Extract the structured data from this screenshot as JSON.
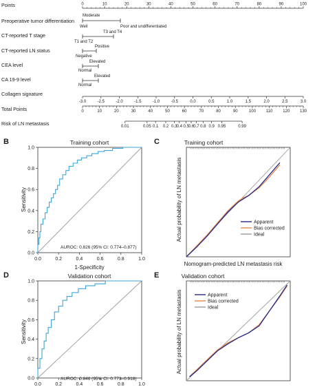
{
  "nomogram": {
    "rows": [
      {
        "label": "Points"
      },
      {
        "label": "Preoperative tumor differentiation",
        "level_labels": [
          "Moderate",
          "Well",
          "Poor and undifferentiated"
        ]
      },
      {
        "label": "CT-reported T stage",
        "level_labels": [
          "T3 and T4",
          "T1 and T2"
        ]
      },
      {
        "label": "CT-reported LN status",
        "level_labels": [
          "Positive",
          "Negative"
        ]
      },
      {
        "label": "CEA level",
        "level_labels": [
          "Elevated",
          "Normal"
        ]
      },
      {
        "label": "CA 19-9 level",
        "level_labels": [
          "Elevated",
          "Normal"
        ]
      },
      {
        "label": "Collagen signature"
      },
      {
        "label": "Total Points"
      },
      {
        "label": "Risk of LN metastasis"
      }
    ]
  },
  "panels": {
    "B": {
      "letter": "B",
      "title": "Training cohort",
      "xlabel": "1-Specificity",
      "ylabel": "Sensitivity",
      "annotation": "AUROC: 0.826 (95% CI: 0.774–0.877)"
    },
    "C": {
      "letter": "C",
      "title": "Training cohort",
      "xlabel": "Nomogram-predicted LN metastasis risk",
      "ylabel": "Actual probability of LN metastasis"
    },
    "D": {
      "letter": "D",
      "title": "Validation cohort",
      "xlabel": "",
      "ylabel": "Sensitivity",
      "annotation": "AUROC: 0.846 (95% CI: 0.773–0.918)"
    },
    "E": {
      "letter": "E",
      "title": "Validation cohort",
      "xlabel": "",
      "ylabel": "Actual probability of LN metastasis"
    }
  },
  "colors": {
    "roc": "#3aa5d8",
    "diagonal": "#9a9a9a",
    "apparent": "#1f2a88",
    "bias_corrected": "#e8864a",
    "ideal": "#9a9a9a",
    "axis": "#333333"
  },
  "chart_data": [
    {
      "type": "table",
      "title": "",
      "scales": [
        {
          "name": "Points",
          "ticks": [
            0,
            10,
            20,
            30,
            40,
            50,
            60,
            70,
            80,
            90,
            100
          ]
        },
        {
          "name": "Preoperative tumor differentiation",
          "levels": [
            {
              "label": "Well",
              "points": 0
            },
            {
              "label": "Moderate",
              "points": 0
            },
            {
              "label": "Poor and undifferentiated",
              "points": 15
            }
          ]
        },
        {
          "name": "CT-reported T stage",
          "levels": [
            {
              "label": "T1 and T2",
              "points": 0
            },
            {
              "label": "T3 and T4",
              "points": 15
            }
          ]
        },
        {
          "name": "CT-reported LN status",
          "levels": [
            {
              "label": "Negative",
              "points": 0
            },
            {
              "label": "Positive",
              "points": 6
            }
          ]
        },
        {
          "name": "CEA level",
          "levels": [
            {
              "label": "Normal",
              "points": 0
            },
            {
              "label": "Elevated",
              "points": 6
            }
          ]
        },
        {
          "name": "CA 19-9 level",
          "levels": [
            {
              "label": "Normal",
              "points": 0
            },
            {
              "label": "Elevated",
              "points": 6
            }
          ]
        },
        {
          "name": "Collagen signature",
          "ticks": [
            "-3.0",
            "-2.5",
            "-2.0",
            "-1.5",
            "-1.0",
            "-0.5",
            "0.0",
            "0.5",
            "1.0",
            "1.5",
            "2.0",
            "2.5",
            "3.0"
          ],
          "points_range": [
            0,
            100
          ]
        },
        {
          "name": "Total Points",
          "ticks": [
            0,
            10,
            20,
            30,
            40,
            50,
            60,
            70,
            80,
            90,
            100,
            110,
            120,
            130
          ]
        },
        {
          "name": "Risk of LN metastasis",
          "ticks": [
            "0.01",
            "0.05",
            "0.1",
            "0.2",
            "0.3",
            "0.4",
            "0.5",
            "0.6",
            "0.7",
            "0.8",
            "0.9",
            "0.95",
            "0.99"
          ],
          "total_points_at_ticks": [
            25,
            38,
            43,
            49,
            54,
            57,
            61,
            64,
            67,
            71,
            76,
            82,
            94
          ]
        }
      ]
    },
    {
      "type": "line",
      "title": "Training cohort",
      "xlabel": "1-Specificity",
      "ylabel": "Sensitivity",
      "xlim": [
        0,
        1
      ],
      "ylim": [
        0,
        1
      ],
      "xticks": [
        "0.0",
        "0.2",
        "0.4",
        "0.6",
        "0.8",
        "1.0"
      ],
      "yticks": [
        "0.0",
        "0.2",
        "0.4",
        "0.6",
        "0.8",
        "1.0"
      ],
      "series": [
        {
          "x": [
            0,
            0,
            0.01,
            0.01,
            0.02,
            0.02,
            0.03,
            0.03,
            0.05,
            0.05,
            0.07,
            0.07,
            0.09,
            0.09,
            0.11,
            0.11,
            0.13,
            0.13,
            0.15,
            0.15,
            0.17,
            0.17,
            0.19,
            0.19,
            0.21,
            0.21,
            0.24,
            0.24,
            0.27,
            0.27,
            0.3,
            0.3,
            0.34,
            0.34,
            0.38,
            0.38,
            0.42,
            0.42,
            0.47,
            0.47,
            0.52,
            0.52,
            0.58,
            0.58,
            0.64,
            0.64,
            0.72,
            0.72,
            0.82,
            0.82,
            1.0,
            1.0
          ],
          "y": [
            0,
            0.08,
            0.08,
            0.14,
            0.14,
            0.2,
            0.2,
            0.27,
            0.27,
            0.32,
            0.32,
            0.38,
            0.38,
            0.43,
            0.43,
            0.48,
            0.48,
            0.52,
            0.52,
            0.56,
            0.56,
            0.6,
            0.6,
            0.64,
            0.64,
            0.7,
            0.7,
            0.74,
            0.74,
            0.78,
            0.78,
            0.82,
            0.82,
            0.85,
            0.85,
            0.88,
            0.88,
            0.9,
            0.9,
            0.92,
            0.92,
            0.94,
            0.94,
            0.96,
            0.96,
            0.97,
            0.97,
            0.99,
            0.99,
            1.0,
            1.0,
            1.0
          ]
        }
      ],
      "reference_line": {
        "x": [
          0,
          1
        ],
        "y": [
          0,
          1
        ]
      }
    },
    {
      "type": "line",
      "title": "Training cohort",
      "xlabel": "Nomogram-predicted LN metastasis risk",
      "ylabel": "Actual probability of LN metastasis",
      "legend": "bottom-right",
      "series": [
        {
          "name": "Apparent",
          "x": [
            0,
            0.1,
            0.2,
            0.3,
            0.4,
            0.5,
            0.55,
            0.6,
            0.7,
            0.8,
            0.9
          ],
          "y": [
            0,
            0.09,
            0.19,
            0.3,
            0.41,
            0.5,
            0.53,
            0.56,
            0.64,
            0.75,
            0.86
          ]
        },
        {
          "name": "Bias corrected",
          "x": [
            0,
            0.1,
            0.2,
            0.3,
            0.4,
            0.5,
            0.55,
            0.6,
            0.7,
            0.8,
            0.9
          ],
          "y": [
            0,
            0.1,
            0.2,
            0.31,
            0.42,
            0.51,
            0.54,
            0.56,
            0.63,
            0.73,
            0.84
          ]
        },
        {
          "name": "Ideal",
          "x": [
            0,
            1
          ],
          "y": [
            0,
            1
          ]
        }
      ]
    },
    {
      "type": "line",
      "title": "Validation cohort",
      "xlabel": "",
      "ylabel": "Sensitivity",
      "xlim": [
        0,
        1
      ],
      "ylim": [
        0,
        1
      ],
      "xticks": [
        "0.0",
        "0.2",
        "0.4",
        "0.6",
        "0.8",
        "1.0"
      ],
      "yticks": [
        "0.0",
        "0.2",
        "0.4",
        "0.6",
        "0.8",
        "1.0"
      ],
      "series": [
        {
          "x": [
            0,
            0,
            0.02,
            0.02,
            0.04,
            0.04,
            0.06,
            0.06,
            0.08,
            0.08,
            0.1,
            0.1,
            0.13,
            0.13,
            0.16,
            0.16,
            0.2,
            0.2,
            0.24,
            0.24,
            0.28,
            0.28,
            0.33,
            0.33,
            0.39,
            0.39,
            0.46,
            0.46,
            0.55,
            0.55,
            0.65,
            0.65,
            1.0,
            1.0
          ],
          "y": [
            0,
            0.1,
            0.1,
            0.2,
            0.2,
            0.3,
            0.3,
            0.38,
            0.38,
            0.46,
            0.46,
            0.52,
            0.52,
            0.6,
            0.6,
            0.68,
            0.68,
            0.74,
            0.74,
            0.8,
            0.8,
            0.84,
            0.84,
            0.88,
            0.88,
            0.92,
            0.92,
            0.95,
            0.95,
            0.97,
            0.97,
            1.0,
            1.0,
            1.0
          ]
        }
      ],
      "reference_line": {
        "x": [
          0,
          1
        ],
        "y": [
          0,
          1
        ]
      }
    },
    {
      "type": "line",
      "title": "Validation cohort",
      "xlabel": "",
      "ylabel": "Actual probability of LN metastasis",
      "legend": "top-left",
      "series": [
        {
          "name": "Apparent",
          "x": [
            0.03,
            0.1,
            0.2,
            0.3,
            0.4,
            0.5,
            0.6,
            0.7,
            0.8,
            0.9,
            0.97
          ],
          "y": [
            0.04,
            0.1,
            0.2,
            0.3,
            0.37,
            0.43,
            0.48,
            0.55,
            0.7,
            0.85,
            0.96
          ]
        },
        {
          "name": "Bias corrected",
          "x": [
            0.03,
            0.1,
            0.2,
            0.3,
            0.4,
            0.5,
            0.6,
            0.7,
            0.8,
            0.9,
            0.97
          ],
          "y": [
            0.04,
            0.11,
            0.21,
            0.31,
            0.38,
            0.43,
            0.48,
            0.56,
            0.7,
            0.84,
            0.95
          ]
        },
        {
          "name": "Ideal",
          "x": [
            0,
            1
          ],
          "y": [
            0,
            1
          ]
        }
      ]
    }
  ]
}
